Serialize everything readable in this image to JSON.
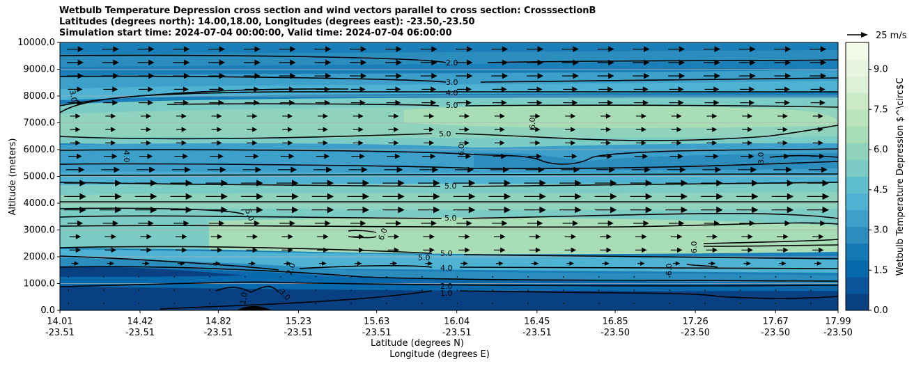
{
  "chart_data": {
    "type": "contour",
    "title_lines": [
      "Wetbulb Temperature Depression cross section and wind vectors parallel to cross section: CrosssectionB",
      "Latitudes (degrees north): 14.00,18.00, Longitudes (degrees east): -23.50,-23.50",
      "Simulation start time: 2024-07-04 00:00:00, Valid time: 2024-07-04 06:00:00"
    ],
    "ylabel": "Altitude (meters)",
    "xlabel_lat": "Latitude (degrees N)",
    "xlabel_lon": "Longitude (degrees E)",
    "ylim": [
      0,
      10000
    ],
    "yticks": [
      "0.0",
      "1000.0",
      "2000.0",
      "3000.0",
      "4000.0",
      "5000.0",
      "6000.0",
      "7000.0",
      "8000.0",
      "9000.0",
      "10000.0"
    ],
    "xlim": [
      14.01,
      17.99
    ],
    "xticks": [
      {
        "lat": "14.01",
        "lon": "-23.51"
      },
      {
        "lat": "14.42",
        "lon": "-23.51"
      },
      {
        "lat": "14.82",
        "lon": "-23.51"
      },
      {
        "lat": "15.23",
        "lon": "-23.51"
      },
      {
        "lat": "15.63",
        "lon": "-23.51"
      },
      {
        "lat": "16.04",
        "lon": "-23.51"
      },
      {
        "lat": "16.45",
        "lon": "-23.51"
      },
      {
        "lat": "16.85",
        "lon": "-23.50"
      },
      {
        "lat": "17.26",
        "lon": "-23.50"
      },
      {
        "lat": "17.67",
        "lon": "-23.50"
      },
      {
        "lat": "17.99",
        "lon": "-23.50"
      }
    ],
    "colorbar": {
      "label": "Wetbulb Temperature Depression $^\\circ$C",
      "range": [
        0,
        10
      ],
      "ticks": [
        "0.0",
        "1.5",
        "3.0",
        "4.5",
        "6.0",
        "7.5",
        "9.0"
      ],
      "colors": [
        "#084081",
        "#0a559c",
        "#0868ac",
        "#1378b4",
        "#2b8cbe",
        "#3ca0ca",
        "#4eb3d3",
        "#5fbfcd",
        "#7bccc4",
        "#8fd3bf",
        "#a8ddb5",
        "#bae4bc",
        "#ccebc5",
        "#dcf1d6",
        "#e8f6e1",
        "#f1fae9"
      ]
    },
    "quiver_key": "25 m/s",
    "contour_labels": [
      "2.0",
      "3.0",
      "4.0",
      "5.0",
      "5.0",
      "5.0",
      "5.0",
      "5.0",
      "4.0",
      "2.0",
      "1.0",
      "6.0",
      "6.0",
      "6.0",
      "6.0",
      "3.0",
      "4.0",
      "5.0",
      "2.0",
      "3.0",
      "6.0",
      "3.0",
      "1.0",
      "5.0"
    ],
    "grid": true
  }
}
